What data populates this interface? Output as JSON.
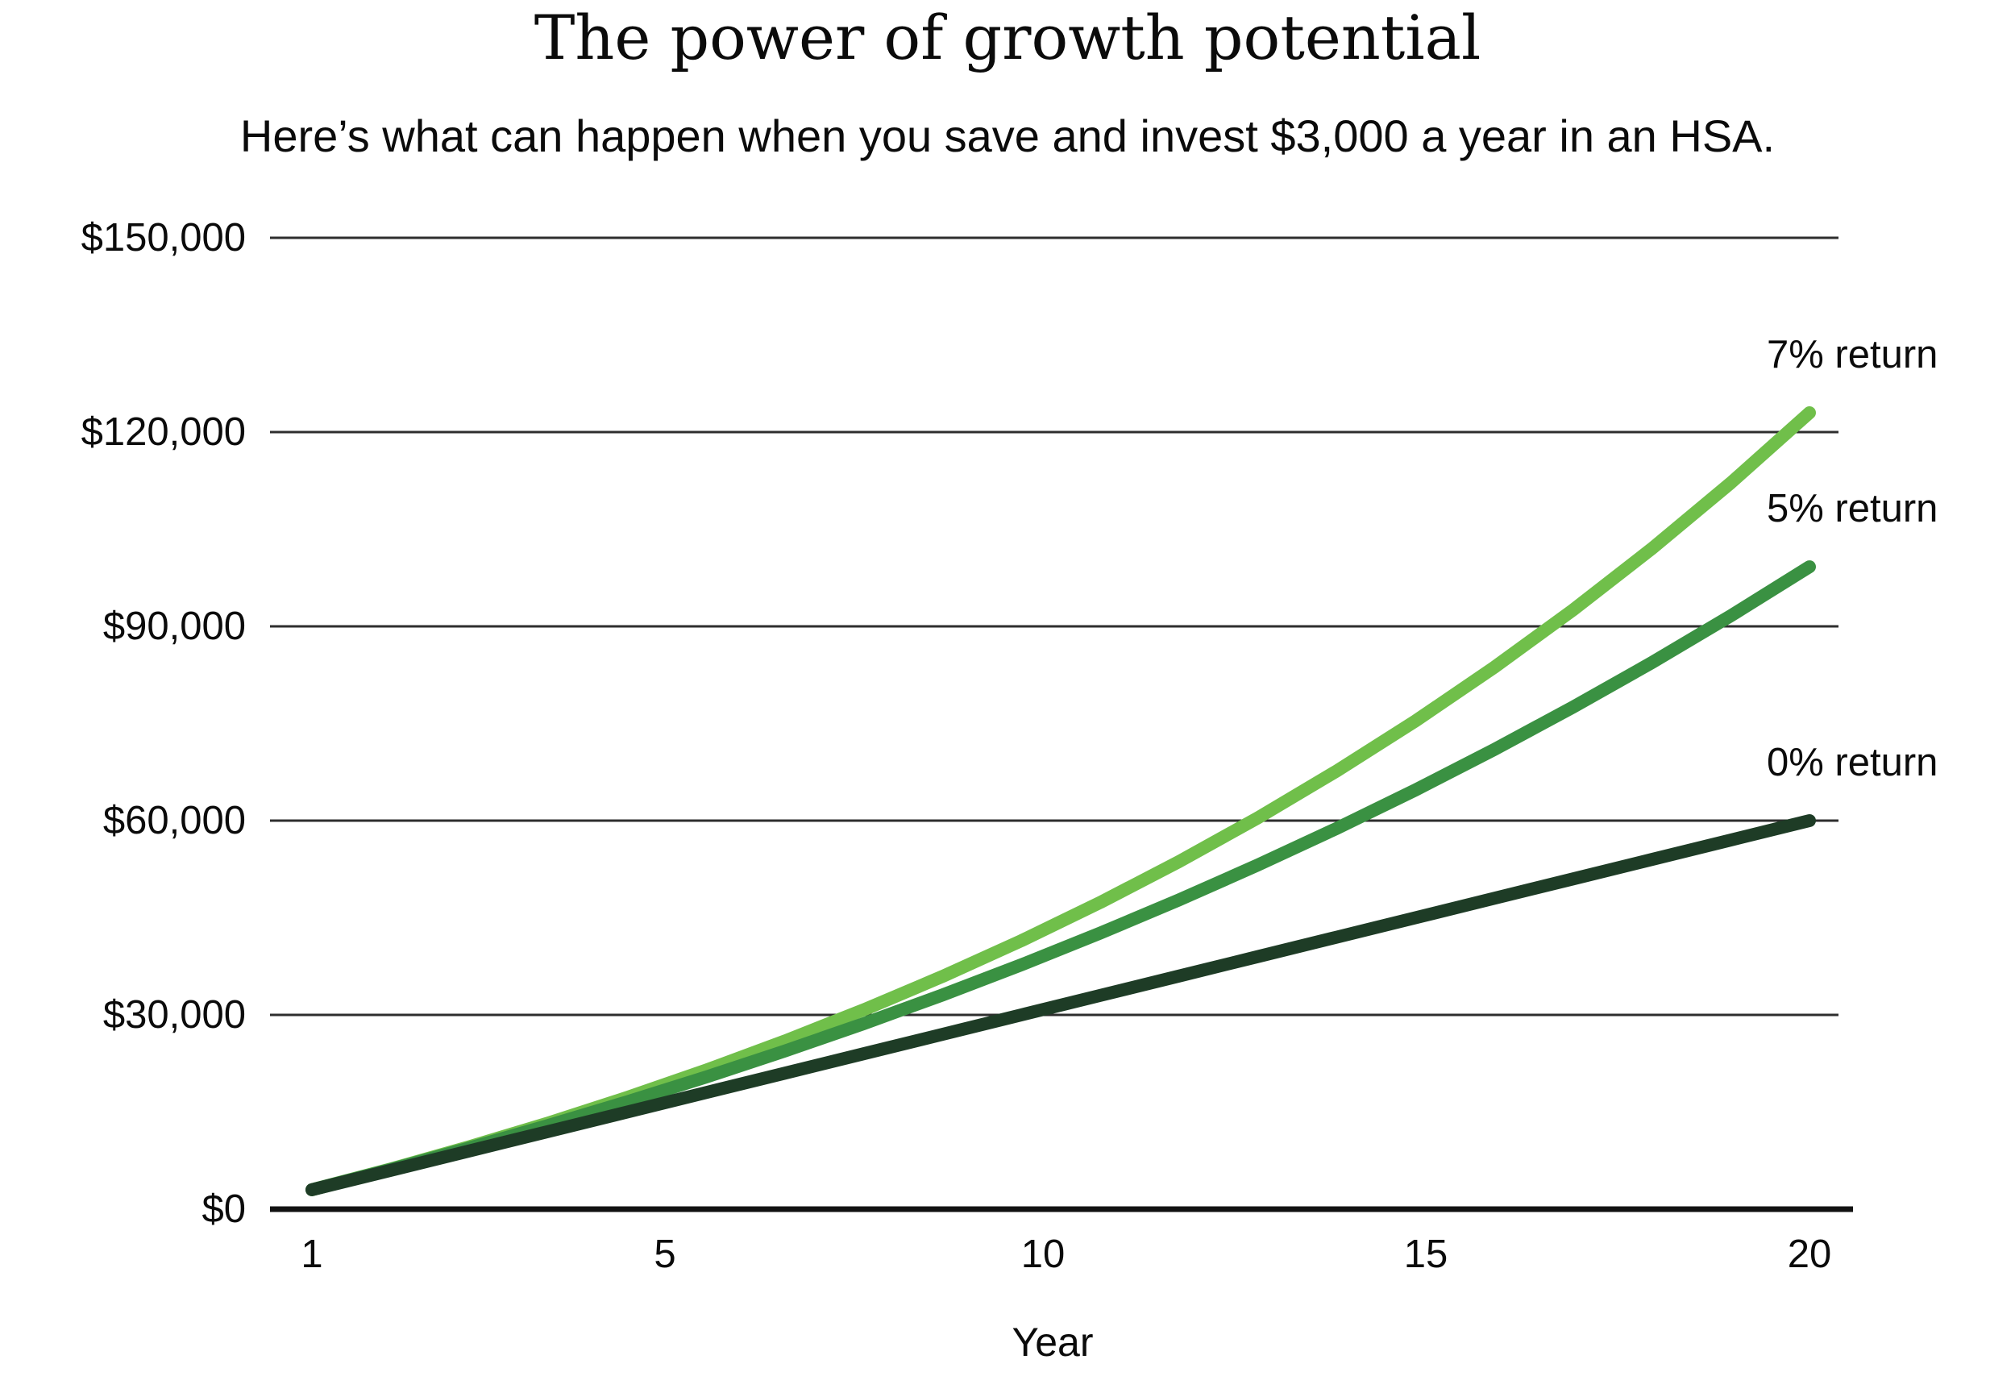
{
  "header": {
    "title": "The power of growth potential",
    "subtitle": "Here’s what can happen when you save and invest $3,000 a year in an HSA."
  },
  "chart_data": {
    "type": "line",
    "title": "The power of growth potential",
    "subtitle": "Here’s what can happen when you save and invest $3,000 a year in an HSA.",
    "xlabel": "Year",
    "ylabel": "",
    "xlim": [
      1,
      20
    ],
    "ylim": [
      0,
      150000
    ],
    "grid": "horizontal",
    "legend_position": "right-of-line-ends",
    "axis_color": "#111111",
    "grid_color": "#2e2e2e",
    "x": [
      1,
      2,
      3,
      4,
      5,
      6,
      7,
      8,
      9,
      10,
      11,
      12,
      13,
      14,
      15,
      16,
      17,
      18,
      19,
      20
    ],
    "x_ticks": [
      {
        "value": 1,
        "label": "1"
      },
      {
        "value": 5,
        "label": "5"
      },
      {
        "value": 10,
        "label": "10"
      },
      {
        "value": 15,
        "label": "15"
      },
      {
        "value": 20,
        "label": "20"
      }
    ],
    "y_ticks": [
      {
        "value": 0,
        "label": "$0"
      },
      {
        "value": 30000,
        "label": "$30,000"
      },
      {
        "value": 60000,
        "label": "$60,000"
      },
      {
        "value": 90000,
        "label": "$90,000"
      },
      {
        "value": 120000,
        "label": "$120,000"
      },
      {
        "value": 150000,
        "label": "$150,000"
      }
    ],
    "series": [
      {
        "name": "7% return",
        "color": "#70BF4A",
        "values": [
          3000,
          6210,
          9645,
          13320,
          17252,
          21460,
          25962,
          30779,
          35934,
          41449,
          47351,
          53665,
          60422,
          67651,
          75387,
          83664,
          92521,
          101997,
          112137,
          122986
        ]
      },
      {
        "name": "5% return",
        "color": "#3A9142",
        "values": [
          3000,
          6150,
          9458,
          12930,
          16577,
          20406,
          24426,
          28647,
          33080,
          37734,
          42620,
          47751,
          53139,
          58796,
          64736,
          70972,
          77521,
          84397,
          91617,
          99198
        ]
      },
      {
        "name": "0% return",
        "color": "#1E3C26",
        "values": [
          3000,
          6000,
          9000,
          12000,
          15000,
          18000,
          21000,
          24000,
          27000,
          30000,
          33000,
          36000,
          39000,
          42000,
          45000,
          48000,
          51000,
          54000,
          57000,
          60000
        ]
      }
    ]
  }
}
